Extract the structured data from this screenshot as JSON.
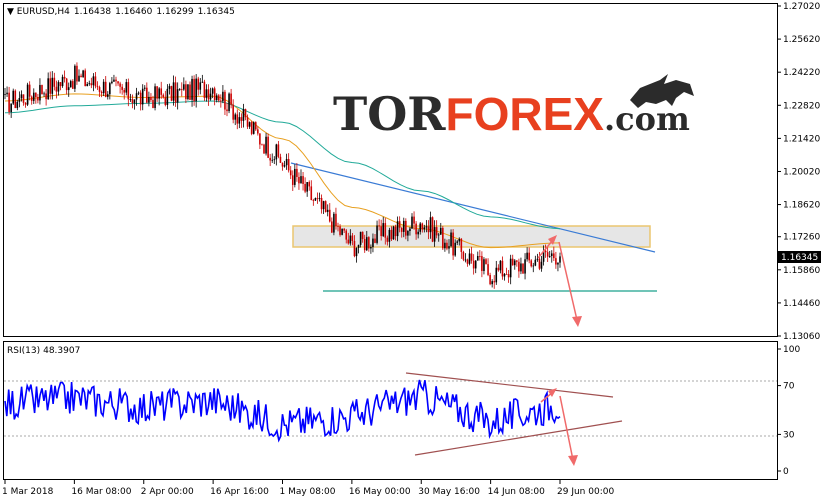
{
  "window": {
    "symbol_title": "EURUSD,H4",
    "ohlc": [
      "1.16438",
      "1.16460",
      "1.16299",
      "1.16345"
    ],
    "rsi_title": "RSI(13)",
    "rsi_value": "48.3907"
  },
  "watermark": {
    "part1": "TOR",
    "part2": "FOREX",
    "part3": ".com",
    "colors": {
      "dark": "#2b2b2b",
      "accent": "#e8401f"
    }
  },
  "chart_data": [
    {
      "type": "line",
      "subtype": "candlestick",
      "symbol": "EURUSD",
      "timeframe": "H4",
      "ylim": [
        1.1306,
        1.2702
      ],
      "y_ticks": [
        "1.27020",
        "1.25620",
        "1.24220",
        "1.22820",
        "1.21420",
        "1.20020",
        "1.18620",
        "1.17260",
        "1.15860",
        "1.14460",
        "1.13060"
      ],
      "current_price": "1.16345",
      "x_ticks": [
        "1 Mar 2018",
        "16 Mar 08:00",
        "2 Apr 00:00",
        "16 Apr 16:00",
        "1 May 08:00",
        "16 May 00:00",
        "30 May 16:00",
        "14 Jun 08:00",
        "29 Jun 00:00"
      ],
      "x": [
        "1 Mar 2018",
        "16 Mar 08:00",
        "2 Apr 00:00",
        "16 Apr 16:00",
        "1 May 08:00",
        "16 May 00:00",
        "30 May 16:00",
        "14 Jun 08:00",
        "29 Jun 00:00"
      ],
      "series": [
        {
          "values": [
            1.229,
            1.24,
            1.231,
            1.236,
            1.204,
            1.169,
            1.179,
            1.157,
            1.166
          ],
          "color": "#cc0000"
        },
        {
          "values": [
            1.23,
            1.233,
            1.2315,
            1.232,
            1.214,
            1.185,
            1.176,
            1.168,
            1.17
          ],
          "color": "#e8a020"
        },
        {
          "values": [
            1.225,
            1.228,
            1.229,
            1.23,
            1.221,
            1.204,
            1.192,
            1.181,
            1.176
          ],
          "color": "#22aa99"
        }
      ],
      "colors": {
        "bull": "#000000",
        "bear": "#cc0000",
        "trendline": "#3a7bd5",
        "support": "#1aa08c",
        "zone": "#d8d8d8",
        "forecast_arrow": "#f06a6a"
      }
    },
    {
      "type": "line",
      "indicator": "RSI(13)",
      "ylim": [
        0,
        100
      ],
      "y_ticks": [
        "100",
        "70",
        "30",
        "0"
      ],
      "current_value": "48.3907",
      "x": [
        "1 Mar 2018",
        "16 Mar 08:00",
        "2 Apr 00:00",
        "16 Apr 16:00",
        "1 May 08:00",
        "16 May 00:00",
        "30 May 16:00",
        "14 Jun 08:00",
        "29 Jun 00:00"
      ],
      "series": [
        {
          "values": [
            55,
            60,
            52,
            58,
            38,
            45,
            62,
            40,
            55
          ],
          "color": "#0000ff"
        }
      ],
      "colors": {
        "triangle": "#a05050",
        "forecast_arrow": "#f06a6a"
      }
    }
  ]
}
